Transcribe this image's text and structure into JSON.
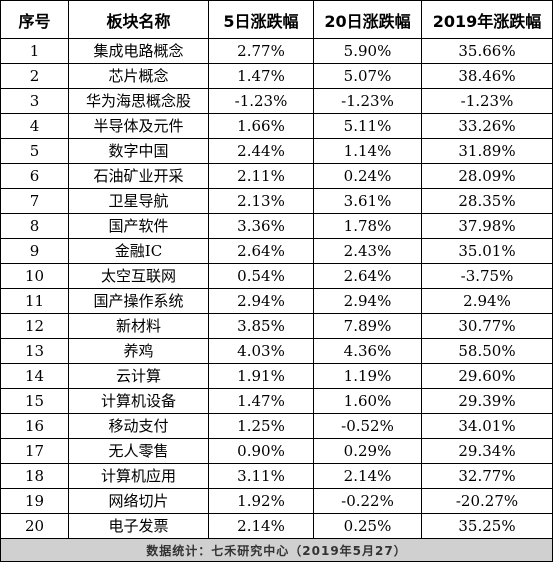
{
  "headers": [
    "序号",
    "板块名称",
    "5日涨跌幅",
    "20日涨跌幅",
    "2019年涨跌幅"
  ],
  "rows": [
    {
      "no": "1",
      "name": "集成电路概念",
      "d5": "2.77%",
      "d20": "5.90%",
      "y2019": "35.66%"
    },
    {
      "no": "2",
      "name": "芯片概念",
      "d5": "1.47%",
      "d20": "5.07%",
      "y2019": "38.46%"
    },
    {
      "no": "3",
      "name": "华为海思概念股",
      "d5": "-1.23%",
      "d20": "-1.23%",
      "y2019": "-1.23%"
    },
    {
      "no": "4",
      "name": "半导体及元件",
      "d5": "1.66%",
      "d20": "5.11%",
      "y2019": "33.26%"
    },
    {
      "no": "5",
      "name": "数字中国",
      "d5": "2.44%",
      "d20": "1.14%",
      "y2019": "31.89%"
    },
    {
      "no": "6",
      "name": "石油矿业开采",
      "d5": "2.11%",
      "d20": "0.24%",
      "y2019": "28.09%"
    },
    {
      "no": "7",
      "name": "卫星导航",
      "d5": "2.13%",
      "d20": "3.61%",
      "y2019": "28.35%"
    },
    {
      "no": "8",
      "name": "国产软件",
      "d5": "3.36%",
      "d20": "1.78%",
      "y2019": "37.98%"
    },
    {
      "no": "9",
      "name": "金融IC",
      "d5": "2.64%",
      "d20": "2.43%",
      "y2019": "35.01%"
    },
    {
      "no": "10",
      "name": "太空互联网",
      "d5": "0.54%",
      "d20": "2.64%",
      "y2019": "-3.75%"
    },
    {
      "no": "11",
      "name": "国产操作系统",
      "d5": "2.94%",
      "d20": "2.94%",
      "y2019": "2.94%"
    },
    {
      "no": "12",
      "name": "新材料",
      "d5": "3.85%",
      "d20": "7.89%",
      "y2019": "30.77%"
    },
    {
      "no": "13",
      "name": "养鸡",
      "d5": "4.03%",
      "d20": "4.36%",
      "y2019": "58.50%"
    },
    {
      "no": "14",
      "name": "云计算",
      "d5": "1.91%",
      "d20": "1.19%",
      "y2019": "29.60%"
    },
    {
      "no": "15",
      "name": "计算机设备",
      "d5": "1.47%",
      "d20": "1.60%",
      "y2019": "29.39%"
    },
    {
      "no": "16",
      "name": "移动支付",
      "d5": "1.25%",
      "d20": "-0.52%",
      "y2019": "34.01%"
    },
    {
      "no": "17",
      "name": "无人零售",
      "d5": "0.90%",
      "d20": "0.29%",
      "y2019": "29.34%"
    },
    {
      "no": "18",
      "name": "计算机应用",
      "d5": "3.11%",
      "d20": "2.14%",
      "y2019": "32.77%"
    },
    {
      "no": "19",
      "name": "网络切片",
      "d5": "1.92%",
      "d20": "-0.22%",
      "y2019": "-20.27%"
    },
    {
      "no": "20",
      "name": "电子发票",
      "d5": "2.14%",
      "d20": "0.25%",
      "y2019": "35.25%"
    }
  ],
  "footer": "数据统计：七禾研究中心（2019年5月27）"
}
